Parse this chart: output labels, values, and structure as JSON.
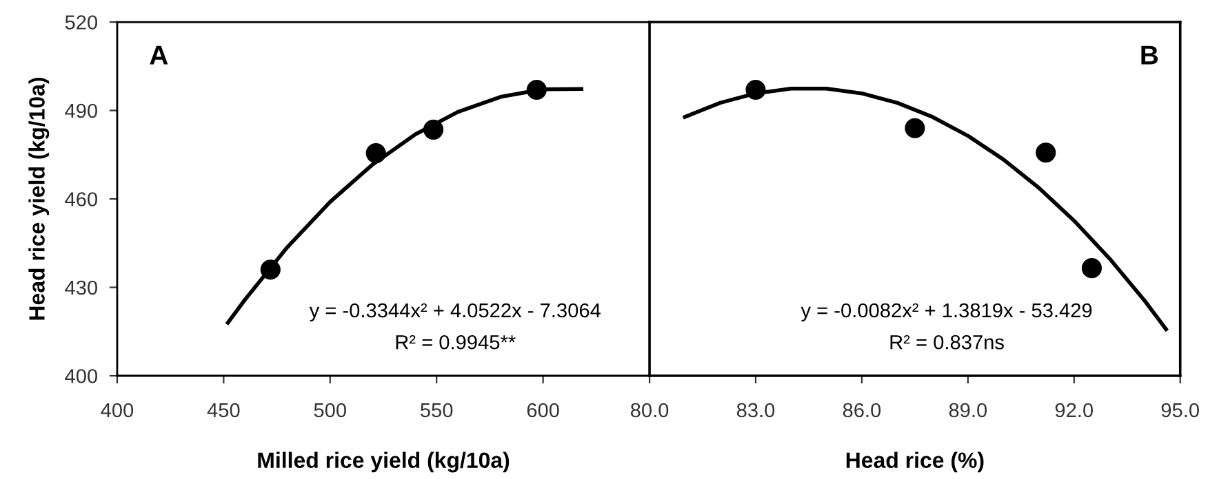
{
  "chart_data": [
    {
      "type": "scatter",
      "xlabel": "Milled rice yield (kg/10a)",
      "ylabel": "Head rice yield (kg/10a)",
      "annotations": [
        "A",
        "y = -0.3344x² + 4.0522x - 7.3064",
        "R² = 0.9945**"
      ],
      "series": [
        {
          "color": "#000000",
          "marker": "circle",
          "x": [
            472,
            521.5,
            548.5,
            597
          ],
          "values": [
            436,
            475.5,
            483.5,
            497
          ]
        },
        {
          "type": "line",
          "color": "#000000",
          "marker": "none",
          "line_style": "solid",
          "x": [
            452,
            460,
            480,
            500,
            520,
            540,
            560,
            580,
            600,
            618
          ],
          "values": [
            418,
            425.8,
            443.7,
            459,
            471.7,
            481.9,
            489.5,
            494.6,
            497.2,
            497.3
          ]
        }
      ],
      "xlim": [
        400,
        650
      ],
      "xticks": [
        400,
        450,
        500,
        550,
        600
      ],
      "ylim": [
        400,
        520
      ],
      "yticks": [
        400,
        430,
        460,
        490,
        520
      ],
      "grid": false,
      "legend": false
    },
    {
      "type": "scatter",
      "xlabel": "Head rice (%)",
      "annotations": [
        "B",
        "y = -0.0082x² + 1.3819x - 53.429",
        "R² = 0.837ns"
      ],
      "series": [
        {
          "color": "#000000",
          "marker": "circle",
          "x": [
            83.0,
            87.5,
            91.2,
            92.5
          ],
          "values": [
            497,
            484,
            475.7,
            436.5
          ]
        },
        {
          "type": "line",
          "color": "#000000",
          "marker": "none",
          "line_style": "solid",
          "x": [
            81,
            82,
            83,
            84,
            85,
            86,
            87,
            88,
            89,
            90,
            91,
            92,
            93,
            94,
            94.6
          ],
          "values": [
            487.8,
            492.6,
            495.8,
            497.4,
            497.4,
            495.8,
            492.6,
            487.8,
            481.4,
            473.4,
            463.8,
            452.6,
            439.8,
            425.4,
            415.8
          ]
        }
      ],
      "xlim": [
        80,
        95
      ],
      "xticks": [
        {
          "value": 80,
          "label": "80.0"
        },
        {
          "value": 83,
          "label": "83.0"
        },
        {
          "value": 86,
          "label": "86.0"
        },
        {
          "value": 89,
          "label": "89.0"
        },
        {
          "value": 92,
          "label": "92.0"
        },
        {
          "value": 95,
          "label": "95.0"
        }
      ],
      "ylim": [
        400,
        520
      ],
      "tick_labels": "x",
      "grid": false,
      "legend": false
    }
  ]
}
